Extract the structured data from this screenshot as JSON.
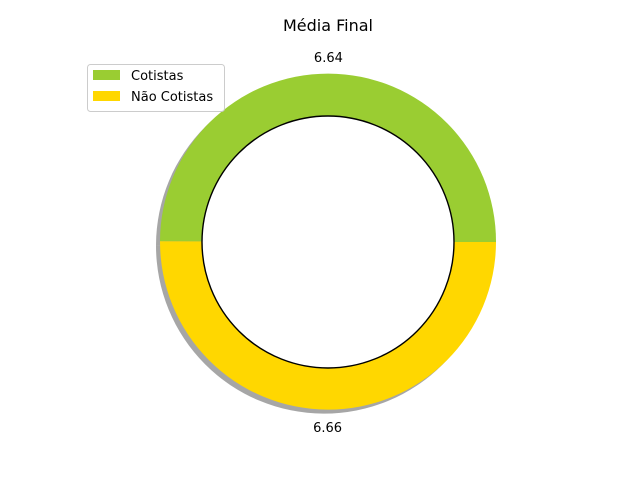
{
  "chart_data": {
    "type": "pie",
    "title": "Média Final",
    "categories": [
      "Cotistas",
      "Não Cotistas"
    ],
    "values": [
      6.64,
      6.66
    ],
    "value_labels": [
      "6.64",
      "6.66"
    ],
    "colors": [
      "#9ACD32",
      "#FFD700"
    ],
    "donut": true,
    "shadow": true,
    "legend": {
      "placement": "upper-left",
      "entries": [
        "Cotistas",
        "Não Cotistas"
      ]
    }
  }
}
